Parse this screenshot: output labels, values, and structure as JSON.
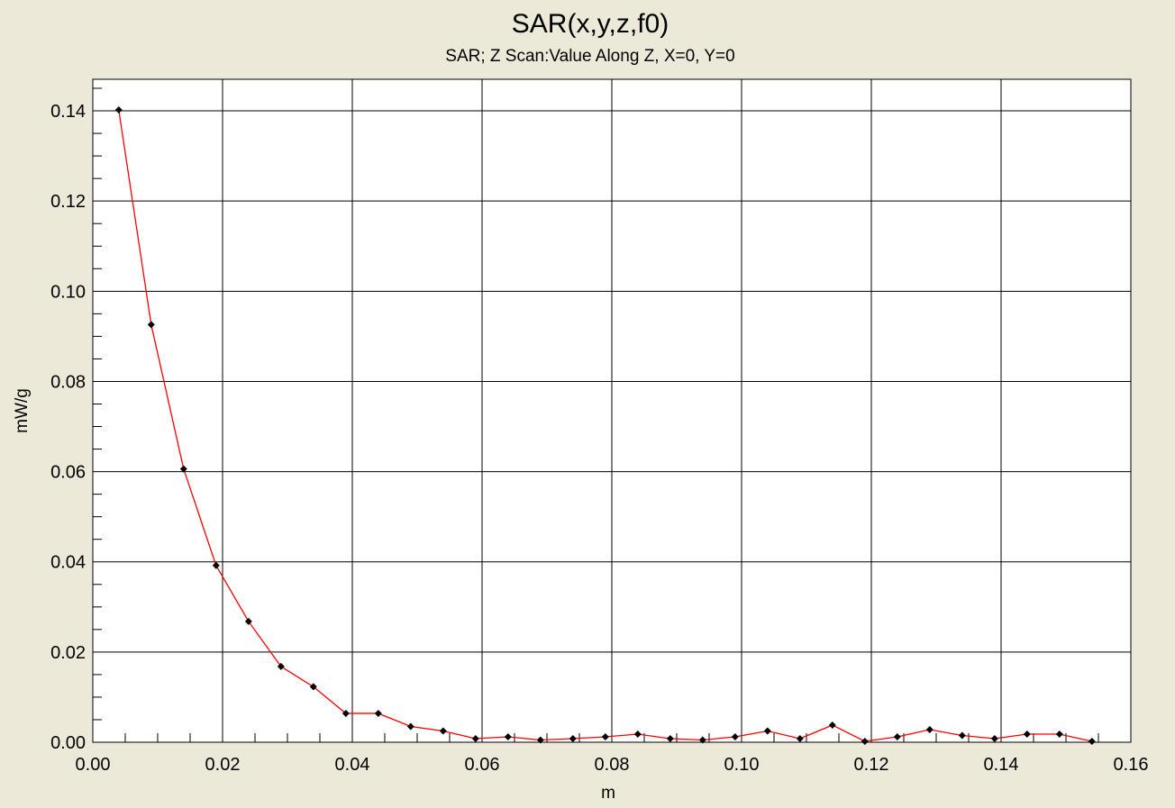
{
  "chart_data": {
    "type": "line",
    "title": "SAR(x,y,z,f0)",
    "subtitle": "SAR; Z Scan:Value Along Z, X=0, Y=0",
    "xlabel": "m",
    "ylabel": "mW/g",
    "xlim": [
      0.0,
      0.16
    ],
    "ylim": [
      0.0,
      0.147
    ],
    "x_ticks": [
      "0.00",
      "0.02",
      "0.04",
      "0.06",
      "0.08",
      "0.10",
      "0.12",
      "0.14",
      "0.16"
    ],
    "y_ticks": [
      "0.00",
      "0.02",
      "0.04",
      "0.06",
      "0.08",
      "0.10",
      "0.12",
      "0.14"
    ],
    "grid": true,
    "colors": {
      "line": "#ff0000",
      "marker": "#000000",
      "plot_bg": "#ffffff",
      "page_bg": "#ece9d8"
    },
    "series": [
      {
        "x": [
          0.004,
          0.009,
          0.014,
          0.019,
          0.024,
          0.029,
          0.034,
          0.039,
          0.044,
          0.049,
          0.054,
          0.059,
          0.064,
          0.069,
          0.074,
          0.079,
          0.084,
          0.089,
          0.094,
          0.099,
          0.104,
          0.109,
          0.114,
          0.119,
          0.124,
          0.129,
          0.134,
          0.139,
          0.144,
          0.149,
          0.154
        ],
        "y": [
          0.1402,
          0.0926,
          0.0606,
          0.0392,
          0.0268,
          0.0168,
          0.0123,
          0.0064,
          0.0064,
          0.0035,
          0.0025,
          0.0008,
          0.0012,
          0.0005,
          0.0008,
          0.0012,
          0.0018,
          0.0008,
          0.0005,
          0.0012,
          0.0025,
          0.0008,
          0.0038,
          0.0002,
          0.0012,
          0.0028,
          0.0015,
          0.0008,
          0.0018,
          0.0018,
          0.0002
        ]
      }
    ]
  }
}
